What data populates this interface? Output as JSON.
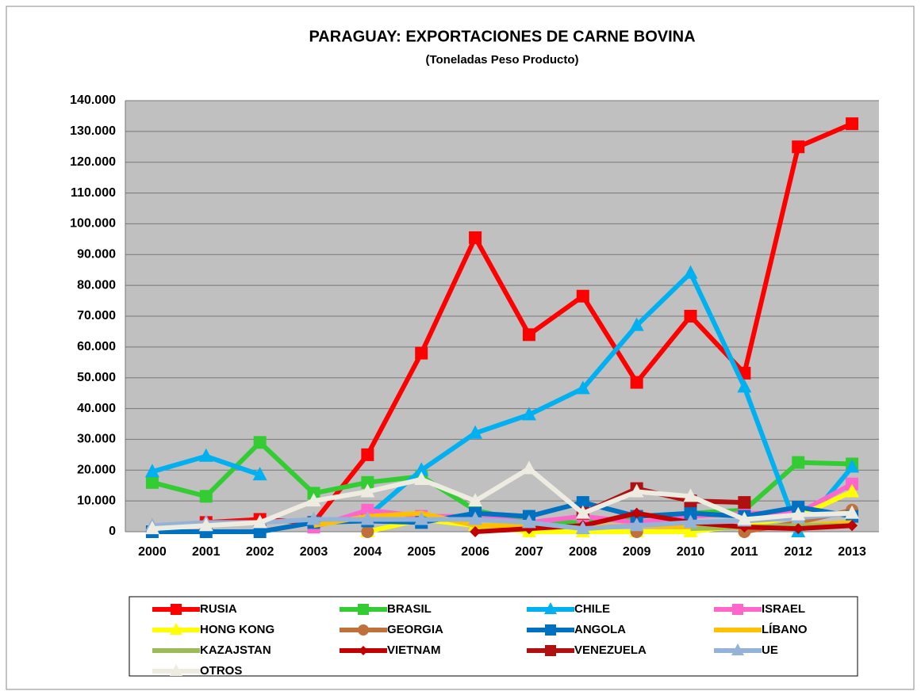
{
  "chart_data": {
    "type": "line",
    "title": "PARAGUAY: EXPORTACIONES DE CARNE BOVINA",
    "subtitle": "(Toneladas Peso Producto)",
    "categories": [
      "2000",
      "2001",
      "2002",
      "2003",
      "2004",
      "2005",
      "2006",
      "2007",
      "2008",
      "2009",
      "2010",
      "2011",
      "2012",
      "2013"
    ],
    "ylim": [
      0,
      140000
    ],
    "yticks": [
      0,
      {
        "value": 10000,
        "label": "10.000"
      },
      {
        "value": 20000,
        "label": "20.000"
      },
      {
        "value": 30000,
        "label": "30.000"
      },
      {
        "value": 40000,
        "label": "40.000"
      },
      {
        "value": 50000,
        "label": "50.000"
      },
      {
        "value": 60000,
        "label": "60.000"
      },
      {
        "value": 70000,
        "label": "70.000"
      },
      {
        "value": 80000,
        "label": "80.000"
      },
      {
        "value": 90000,
        "label": "90.000"
      },
      {
        "value": 100000,
        "label": "100.000"
      },
      {
        "value": 110000,
        "label": "110.000"
      },
      {
        "value": 120000,
        "label": "120.000"
      },
      {
        "value": 130000,
        "label": "130.000"
      },
      {
        "value": 140000,
        "label": "140.000"
      }
    ],
    "grid": true,
    "legend": "bottom",
    "series": [
      {
        "name": "RUSIA",
        "color": "#ff0000",
        "marker": "square",
        "values": [
          null,
          3000,
          4000,
          3000,
          25000,
          58000,
          95500,
          64000,
          76500,
          48500,
          70000,
          51500,
          125000,
          132500
        ]
      },
      {
        "name": "BRASIL",
        "color": "#33cc33",
        "marker": "square",
        "values": [
          16000,
          11500,
          29000,
          12500,
          16000,
          18000,
          7000,
          3000,
          3000,
          5000,
          6000,
          7000,
          22500,
          22000
        ]
      },
      {
        "name": "CHILE",
        "color": "#00b0f0",
        "marker": "triangle",
        "values": [
          19500,
          24500,
          18500,
          null,
          5000,
          20000,
          32000,
          38000,
          46500,
          67000,
          84000,
          47000,
          0,
          21000
        ]
      },
      {
        "name": "ISRAEL",
        "color": "#ff66cc",
        "marker": "square",
        "values": [
          null,
          null,
          null,
          1500,
          7000,
          5000,
          5000,
          3000,
          5000,
          3000,
          5000,
          6000,
          6000,
          15500
        ]
      },
      {
        "name": "HONG KONG",
        "color": "#ffff00",
        "marker": "triangle",
        "values": [
          null,
          null,
          null,
          null,
          0,
          4000,
          2000,
          0,
          0,
          0,
          0,
          2000,
          5000,
          13000
        ]
      },
      {
        "name": "GEORGIA",
        "color": "#c0703a",
        "marker": "circle",
        "values": [
          null,
          null,
          null,
          null,
          0,
          null,
          null,
          null,
          null,
          0,
          null,
          0,
          3000,
          7000
        ]
      },
      {
        "name": "ANGOLA",
        "color": "#0070c0",
        "marker": "square",
        "values": [
          0,
          0,
          0,
          3000,
          3500,
          3000,
          6000,
          5000,
          9500,
          5000,
          6000,
          5000,
          8000,
          5000
        ]
      },
      {
        "name": "LÍBANO",
        "color": "#ffc000",
        "marker": "none",
        "values": [
          null,
          null,
          null,
          2000,
          5000,
          6000,
          2000,
          2000,
          1500,
          2000,
          1500,
          1500,
          2000,
          3000
        ]
      },
      {
        "name": "KAZAJSTAN",
        "color": "#9bbb59",
        "marker": "none",
        "values": [
          null,
          null,
          null,
          null,
          null,
          null,
          null,
          null,
          null,
          null,
          1000,
          1500,
          2000,
          2000
        ]
      },
      {
        "name": "VIETNAM",
        "color": "#c00000",
        "marker": "diamond",
        "values": [
          null,
          null,
          null,
          null,
          null,
          null,
          0,
          1000,
          2000,
          6000,
          3000,
          1500,
          1000,
          2000
        ]
      },
      {
        "name": "VENEZUELA",
        "color": "#b01010",
        "marker": "square",
        "values": [
          null,
          null,
          null,
          null,
          null,
          null,
          null,
          null,
          6000,
          14000,
          10000,
          9500,
          null,
          null
        ]
      },
      {
        "name": "UE",
        "color": "#95b3d7",
        "marker": "triangle",
        "values": [
          2000,
          3000,
          3000,
          4000,
          4000,
          4000,
          4000,
          3000,
          1000,
          2000,
          3000,
          3500,
          4500,
          6000
        ]
      },
      {
        "name": "OTROS",
        "color": "#eeece1",
        "marker": "triangle",
        "values": [
          1000,
          2000,
          3000,
          10000,
          13000,
          17000,
          10000,
          20500,
          6000,
          13000,
          11500,
          4000,
          5500,
          6000
        ]
      }
    ]
  }
}
